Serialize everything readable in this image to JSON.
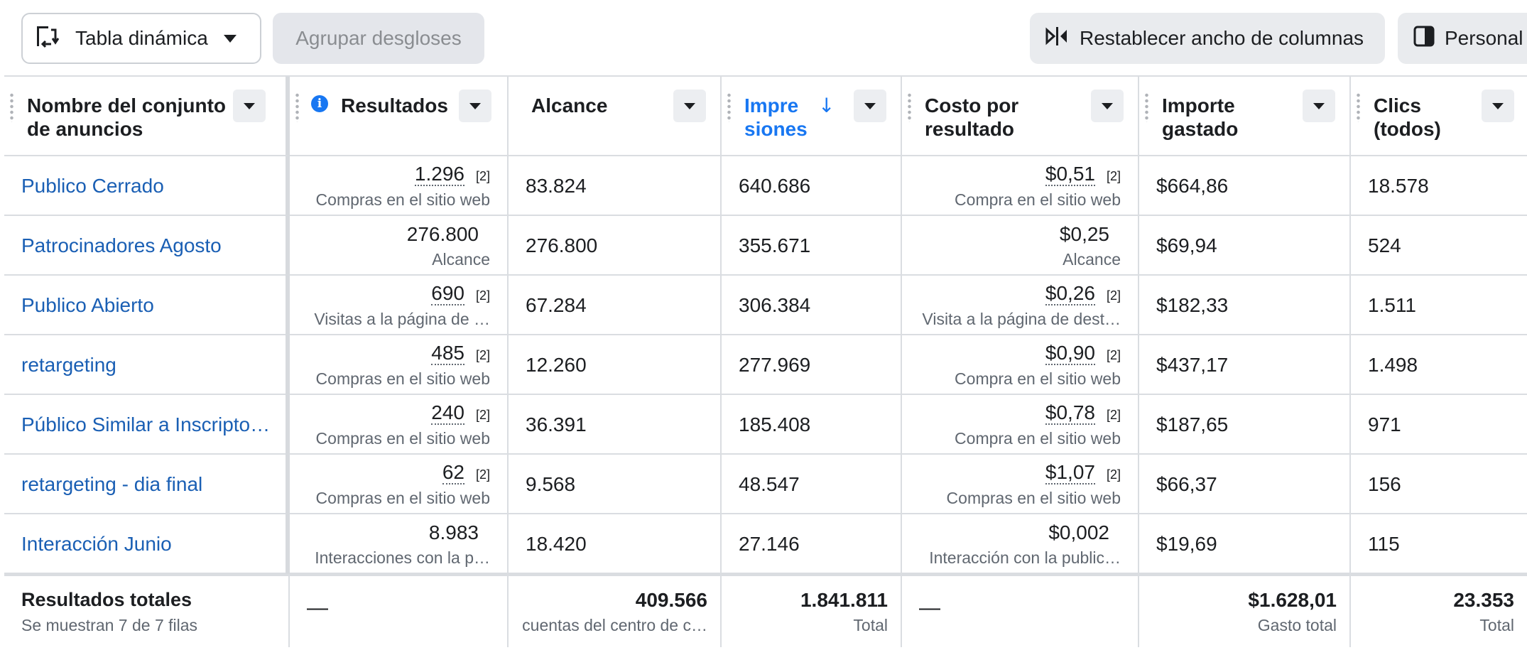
{
  "toolbar": {
    "pivot_label": "Tabla dinámica",
    "group_label": "Agrupar desgloses",
    "reset_label": "Restablecer ancho de columnas",
    "custom_label": "Personal"
  },
  "columns": [
    {
      "key": "name",
      "label": "Nombre del conjunto de anuncios"
    },
    {
      "key": "results",
      "label": "Resultados"
    },
    {
      "key": "reach",
      "label": "Alcance"
    },
    {
      "key": "impressions",
      "label": "Impre siones",
      "sorted": "desc"
    },
    {
      "key": "cost",
      "label": "Costo por resultado"
    },
    {
      "key": "spent",
      "label": "Importe gastado"
    },
    {
      "key": "clicks",
      "label": "Clics (todos)"
    }
  ],
  "rows": [
    {
      "name": "Publico Cerrado",
      "results": "1.296",
      "results_fn": "[2]",
      "results_type": "Compras en el sitio web",
      "reach": "83.824",
      "impressions": "640.686",
      "cost": "$0,51",
      "cost_fn": "[2]",
      "cost_type": "Compra en el sitio web",
      "spent": "$664,86",
      "clicks": "18.578"
    },
    {
      "name": "Patrocinadores Agosto",
      "results": "276.800",
      "results_fn": "",
      "results_type": "Alcance",
      "reach": "276.800",
      "impressions": "355.671",
      "cost": "$0,25",
      "cost_fn": "",
      "cost_type": "Alcance",
      "spent": "$69,94",
      "clicks": "524"
    },
    {
      "name": "Publico Abierto",
      "results": "690",
      "results_fn": "[2]",
      "results_type": "Visitas a la página de …",
      "reach": "67.284",
      "impressions": "306.384",
      "cost": "$0,26",
      "cost_fn": "[2]",
      "cost_type": "Visita a la página de dest…",
      "spent": "$182,33",
      "clicks": "1.511"
    },
    {
      "name": "retargeting",
      "results": "485",
      "results_fn": "[2]",
      "results_type": "Compras en el sitio web",
      "reach": "12.260",
      "impressions": "277.969",
      "cost": "$0,90",
      "cost_fn": "[2]",
      "cost_type": "Compra en el sitio web",
      "spent": "$437,17",
      "clicks": "1.498"
    },
    {
      "name": "Público Similar a Inscripto…",
      "results": "240",
      "results_fn": "[2]",
      "results_type": "Compras en el sitio web",
      "reach": "36.391",
      "impressions": "185.408",
      "cost": "$0,78",
      "cost_fn": "[2]",
      "cost_type": "Compra en el sitio web",
      "spent": "$187,65",
      "clicks": "971"
    },
    {
      "name": "retargeting - dia final",
      "results": "62",
      "results_fn": "[2]",
      "results_type": "Compras en el sitio web",
      "reach": "9.568",
      "impressions": "48.547",
      "cost": "$1,07",
      "cost_fn": "[2]",
      "cost_type": "Compras en el sitio web",
      "spent": "$66,37",
      "clicks": "156"
    },
    {
      "name": "Interacción Junio",
      "results": "8.983",
      "results_fn": "",
      "results_type": "Interacciones con la p…",
      "reach": "18.420",
      "impressions": "27.146",
      "cost": "$0,002",
      "cost_fn": "",
      "cost_type": "Interacción con la public…",
      "spent": "$19,69",
      "clicks": "115"
    }
  ],
  "totals": {
    "title": "Resultados totales",
    "subtitle": "Se muestran 7 de 7 filas",
    "results": "—",
    "reach": "409.566",
    "reach_label": "cuentas del centro de c…",
    "impressions": "1.841.811",
    "impressions_label": "Total",
    "cost": "—",
    "spent": "$1.628,01",
    "spent_label": "Gasto total",
    "clicks": "23.353",
    "clicks_label": "Total"
  }
}
